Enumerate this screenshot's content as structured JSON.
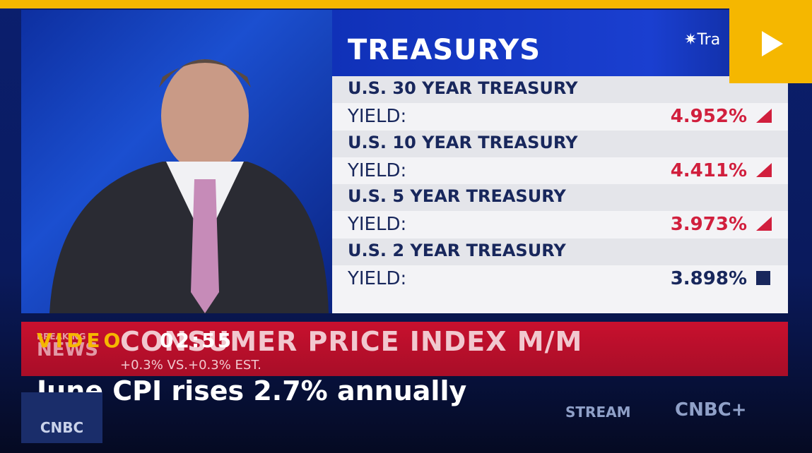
{
  "panel": {
    "title": "TREASURYS",
    "logo": "Tra",
    "rows": [
      {
        "name": "U.S. 30 YEAR TREASURY",
        "label": "YIELD:",
        "value": "4.952%"
      },
      {
        "name": "U.S. 10 YEAR TREASURY",
        "label": "YIELD:",
        "value": "4.411%"
      },
      {
        "name": "U.S. 5 YEAR TREASURY",
        "label": "YIELD:",
        "value": "3.973%"
      },
      {
        "name": "U.S. 2 YEAR TREASURY",
        "label": "YIELD:",
        "value": "3.898%"
      }
    ]
  },
  "ticker": {
    "breaking": "BREAKING",
    "news": "NEWS",
    "headline": "CONSUMER PRICE INDEX M/M",
    "sub": "+0.3% VS.+0.3% EST."
  },
  "video": {
    "tag": "VIDEO",
    "duration": "02:55",
    "title": "June CPI rises 2.7% annually"
  },
  "brand": {
    "stream": "STREAM",
    "network": "CNBC+",
    "logo": "CNBC"
  }
}
